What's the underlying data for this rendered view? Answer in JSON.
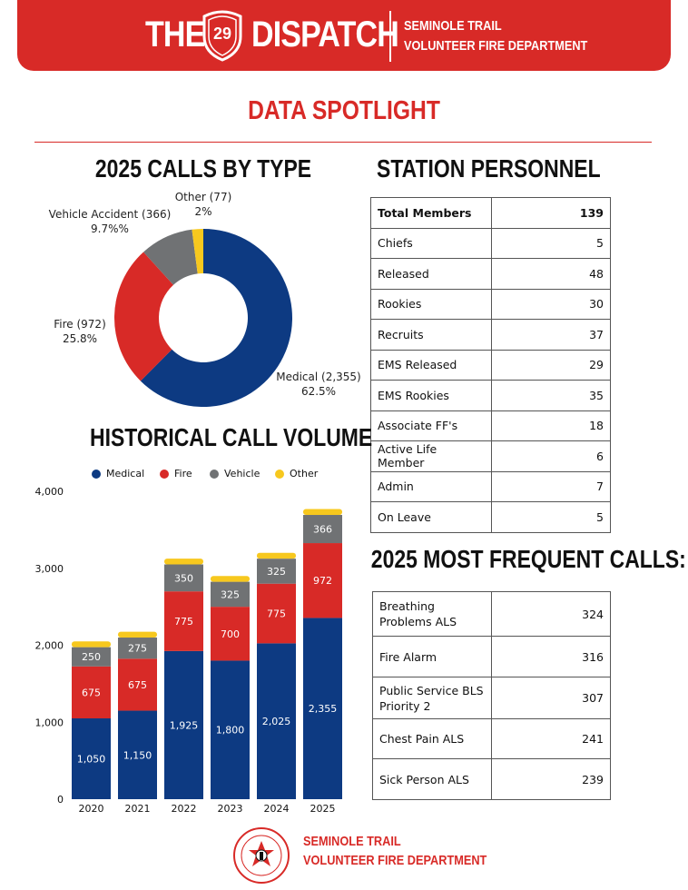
{
  "header": {
    "title_left": "THE",
    "shield_number": "29",
    "title_right": "DISPATCH",
    "subtitle_line1": "SEMINOLE TRAIL",
    "subtitle_line2": "VOLUNTEER FIRE DEPARTMENT"
  },
  "spotlight_title": "DATA SPOTLIGHT",
  "calls_by_type": {
    "title": "2025 CALLS BY TYPE",
    "labels": {
      "other": [
        "Other (77)",
        "2%"
      ],
      "vehicle": [
        "Vehicle Accident (366)",
        "9.7%%"
      ],
      "fire": [
        "Fire (972)",
        "25.8%"
      ],
      "medical": [
        "Medical (2,355)",
        "62.5%"
      ]
    }
  },
  "personnel": {
    "title": "STATION PERSONNEL",
    "rows": [
      {
        "label": "Total Members",
        "value": "139"
      },
      {
        "label": "Chiefs",
        "value": "5"
      },
      {
        "label": "Released",
        "value": "48"
      },
      {
        "label": "Rookies",
        "value": "30"
      },
      {
        "label": "Recruits",
        "value": "37"
      },
      {
        "label": "EMS Released",
        "value": "29"
      },
      {
        "label": "EMS Rookies",
        "value": "35"
      },
      {
        "label": "Associate FF's",
        "value": "18"
      },
      {
        "label": "Active Life Member",
        "value": "6"
      },
      {
        "label": "Admin",
        "value": "7"
      },
      {
        "label": "On Leave",
        "value": "5"
      }
    ]
  },
  "historical": {
    "title": "HISTORICAL CALL VOLUME",
    "legend": [
      "Medical",
      "Fire",
      "Vehicle",
      "Other"
    ]
  },
  "frequent": {
    "title": "2025 MOST FREQUENT CALLS:",
    "rows": [
      {
        "label_lines": [
          "Breathing",
          "Problems ALS"
        ],
        "value": "324"
      },
      {
        "label_lines": [
          "Fire Alarm"
        ],
        "value": "316"
      },
      {
        "label_lines": [
          "Public Service BLS",
          "Priority 2"
        ],
        "value": "307"
      },
      {
        "label_lines": [
          "Chest Pain ALS"
        ],
        "value": "241"
      },
      {
        "label_lines": [
          "Sick Person ALS"
        ],
        "value": "239"
      }
    ]
  },
  "footer": {
    "line1": "SEMINOLE TRAIL",
    "line2": "VOLUNTEER FIRE DEPARTMENT",
    "logo_text_top": "SEMINOLE",
    "logo_text_bottom": "VOL. FIRE DEPT."
  },
  "colors": {
    "medical": "#0d3a82",
    "fire": "#d82a27",
    "vehicle": "#707274",
    "other": "#f7c81e",
    "brand": "#d82a27"
  },
  "chart_data": [
    {
      "type": "pie",
      "title": "2025 CALLS BY TYPE",
      "categories": [
        "Medical",
        "Fire",
        "Vehicle Accident",
        "Other"
      ],
      "values": [
        2355,
        972,
        366,
        77
      ]
    },
    {
      "type": "bar",
      "stacked": true,
      "title": "HISTORICAL CALL VOLUME",
      "categories": [
        "2020",
        "2021",
        "2022",
        "2023",
        "2024",
        "2025"
      ],
      "ylim": [
        0,
        4000
      ],
      "yticks": [
        "0",
        "1,000",
        "2,000",
        "3,000",
        "4,000"
      ],
      "legend_position": "top",
      "series": [
        {
          "name": "Medical",
          "values": [
            1050,
            1150,
            1925,
            1800,
            2025,
            2355
          ],
          "labels": [
            "1,050",
            "1,150",
            "1,925",
            "1,800",
            "2,025",
            "2,355"
          ]
        },
        {
          "name": "Fire",
          "values": [
            675,
            675,
            775,
            700,
            775,
            972
          ],
          "labels": [
            "675",
            "675",
            "775",
            "700",
            "775",
            "972"
          ]
        },
        {
          "name": "Vehicle",
          "values": [
            250,
            275,
            350,
            325,
            325,
            366
          ],
          "labels": [
            "250",
            "275",
            "350",
            "325",
            "325",
            "366"
          ]
        },
        {
          "name": "Other",
          "values": [
            75,
            75,
            75,
            75,
            75,
            77
          ],
          "labels": [
            "",
            "",
            "",
            "",
            "",
            ""
          ]
        }
      ]
    }
  ]
}
